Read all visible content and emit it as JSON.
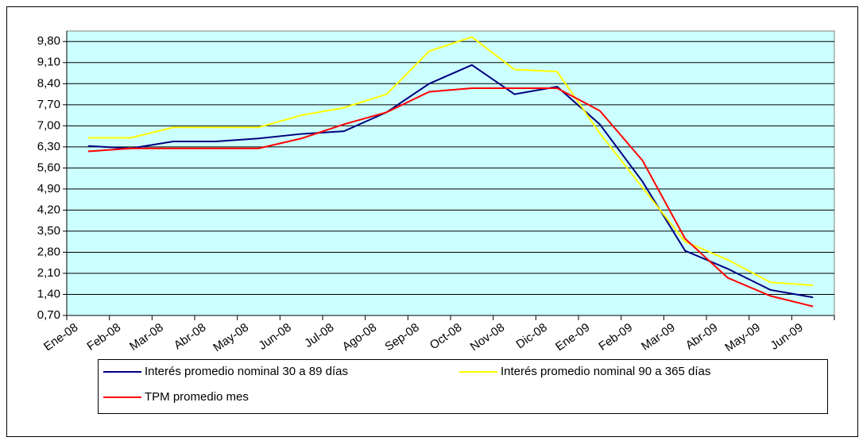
{
  "chart_data": {
    "type": "line",
    "categories": [
      "Ene-08",
      "Feb-08",
      "Mar-08",
      "Abr-08",
      "May-08",
      "Jun-08",
      "Jul-08",
      "Ago-08",
      "Sep-08",
      "Oct-08",
      "Nov-08",
      "Dic-08",
      "Ene-09",
      "Feb-09",
      "Mar-09",
      "Abr-09",
      "May-09",
      "Jun-09"
    ],
    "series": [
      {
        "name": "Interés promedio nominal 30 a 89 días",
        "color": "#000080",
        "values": [
          6.33,
          6.25,
          6.48,
          6.48,
          6.58,
          6.73,
          6.82,
          7.45,
          8.4,
          9.02,
          8.05,
          8.3,
          7.05,
          5.15,
          2.85,
          2.25,
          1.55,
          1.3
        ]
      },
      {
        "name": "Interés promedio nominal 90 a 365 días",
        "color": "#ffff00",
        "values": [
          6.6,
          6.6,
          6.95,
          6.95,
          6.95,
          7.35,
          7.6,
          8.05,
          9.48,
          9.95,
          8.87,
          8.8,
          6.75,
          4.95,
          3.15,
          2.55,
          1.8,
          1.7
        ]
      },
      {
        "name": "TPM promedio  mes",
        "color": "#ff0000",
        "values": [
          6.15,
          6.25,
          6.25,
          6.25,
          6.25,
          6.58,
          7.05,
          7.45,
          8.13,
          8.25,
          8.25,
          8.25,
          7.5,
          5.85,
          3.25,
          1.95,
          1.35,
          1.0
        ]
      }
    ],
    "ylim": [
      0.7,
      10.15
    ],
    "yticks": [
      {
        "value": 0.7,
        "label": "0,70"
      },
      {
        "value": 1.4,
        "label": "1,40"
      },
      {
        "value": 2.1,
        "label": "2,10"
      },
      {
        "value": 2.8,
        "label": "2,80"
      },
      {
        "value": 3.5,
        "label": "3,50"
      },
      {
        "value": 4.2,
        "label": "4,20"
      },
      {
        "value": 4.9,
        "label": "4,90"
      },
      {
        "value": 5.6,
        "label": "5,60"
      },
      {
        "value": 6.3,
        "label": "6,30"
      },
      {
        "value": 7.0,
        "label": "7,00"
      },
      {
        "value": 7.7,
        "label": "7,70"
      },
      {
        "value": 8.4,
        "label": "8,40"
      },
      {
        "value": 9.1,
        "label": "9,10"
      },
      {
        "value": 9.8,
        "label": "9,80"
      }
    ],
    "grid": true,
    "background": "#ccffff"
  }
}
